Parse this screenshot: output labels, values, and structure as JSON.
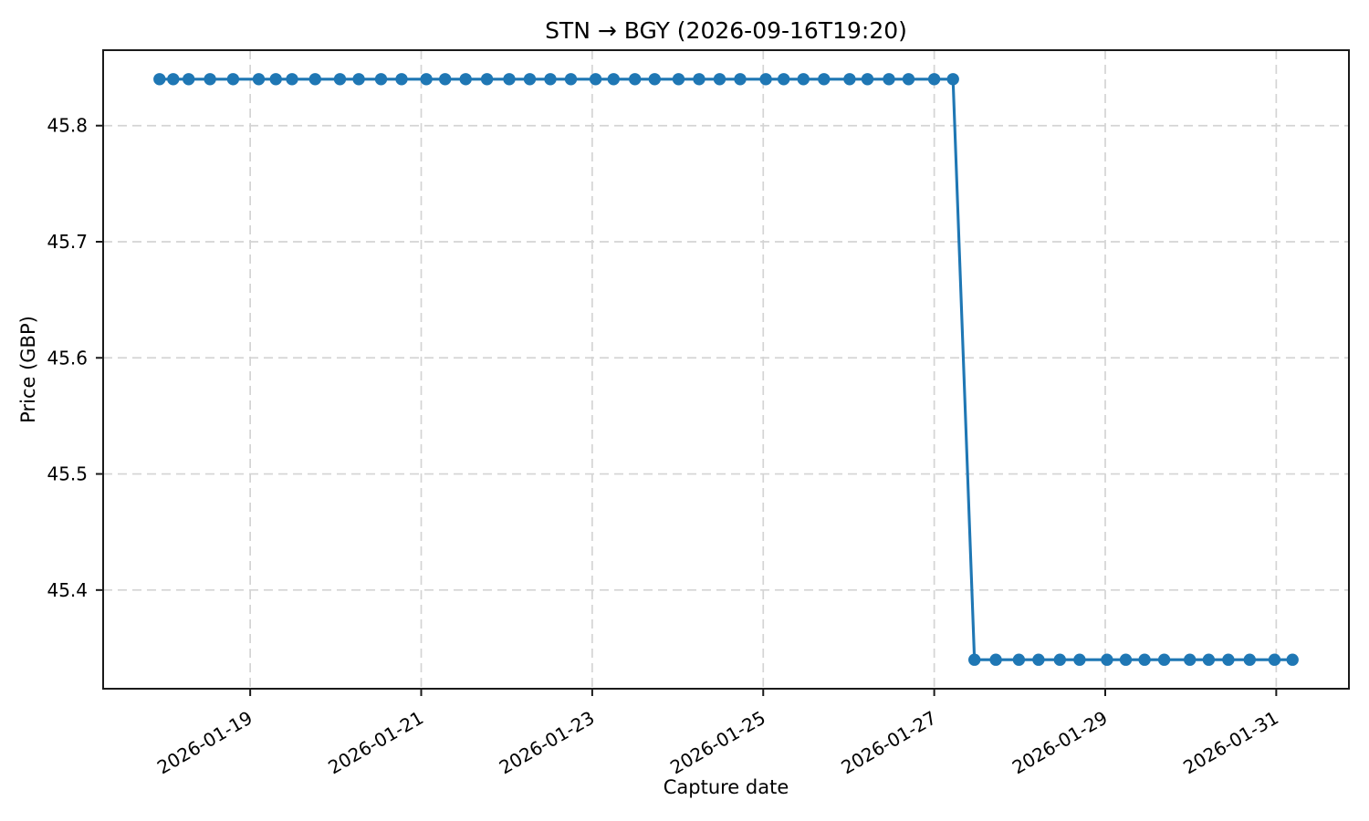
{
  "chart_data": {
    "type": "line",
    "title": "STN → BGY (2026-09-16T19:20)",
    "xlabel": "Capture date",
    "ylabel": "Price (GBP)",
    "x_unit": "fractional day of month, January 2026",
    "xlim": [
      17.28,
      31.85
    ],
    "ylim": [
      45.315,
      45.865
    ],
    "grid": true,
    "grid_style": "dashed",
    "grid_color": "#d4d4d4",
    "axis_color": "#1a1a1a",
    "line_color": "#1f77b4",
    "marker": "circle",
    "legend": "none",
    "x_ticks": [
      {
        "value": 19,
        "label": "2026-01-19"
      },
      {
        "value": 21,
        "label": "2026-01-21"
      },
      {
        "value": 23,
        "label": "2026-01-23"
      },
      {
        "value": 25,
        "label": "2026-01-25"
      },
      {
        "value": 27,
        "label": "2026-01-27"
      },
      {
        "value": 29,
        "label": "2026-01-29"
      },
      {
        "value": 31,
        "label": "2026-01-31"
      }
    ],
    "y_ticks": [
      {
        "value": 45.4,
        "label": "45.4"
      },
      {
        "value": 45.5,
        "label": "45.5"
      },
      {
        "value": 45.6,
        "label": "45.6"
      },
      {
        "value": 45.7,
        "label": "45.7"
      },
      {
        "value": 45.8,
        "label": "45.8"
      }
    ],
    "series": [
      {
        "name": "price",
        "high_value": 45.84,
        "low_value": 45.34,
        "points": [
          [
            17.94,
            45.84
          ],
          [
            18.1,
            45.84
          ],
          [
            18.28,
            45.84
          ],
          [
            18.53,
            45.84
          ],
          [
            18.8,
            45.84
          ],
          [
            19.1,
            45.84
          ],
          [
            19.3,
            45.84
          ],
          [
            19.49,
            45.84
          ],
          [
            19.76,
            45.84
          ],
          [
            20.05,
            45.84
          ],
          [
            20.27,
            45.84
          ],
          [
            20.53,
            45.84
          ],
          [
            20.77,
            45.84
          ],
          [
            21.06,
            45.84
          ],
          [
            21.28,
            45.84
          ],
          [
            21.52,
            45.84
          ],
          [
            21.77,
            45.84
          ],
          [
            22.03,
            45.84
          ],
          [
            22.27,
            45.84
          ],
          [
            22.51,
            45.84
          ],
          [
            22.75,
            45.84
          ],
          [
            23.04,
            45.84
          ],
          [
            23.25,
            45.84
          ],
          [
            23.5,
            45.84
          ],
          [
            23.73,
            45.84
          ],
          [
            24.01,
            45.84
          ],
          [
            24.25,
            45.84
          ],
          [
            24.49,
            45.84
          ],
          [
            24.73,
            45.84
          ],
          [
            25.03,
            45.84
          ],
          [
            25.24,
            45.84
          ],
          [
            25.47,
            45.84
          ],
          [
            25.71,
            45.84
          ],
          [
            26.01,
            45.84
          ],
          [
            26.22,
            45.84
          ],
          [
            26.47,
            45.84
          ],
          [
            26.7,
            45.84
          ],
          [
            27.0,
            45.84
          ],
          [
            27.22,
            45.84
          ],
          [
            27.47,
            45.34
          ],
          [
            27.72,
            45.34
          ],
          [
            27.99,
            45.34
          ],
          [
            28.22,
            45.34
          ],
          [
            28.47,
            45.34
          ],
          [
            28.7,
            45.34
          ],
          [
            29.02,
            45.34
          ],
          [
            29.24,
            45.34
          ],
          [
            29.46,
            45.34
          ],
          [
            29.69,
            45.34
          ],
          [
            29.99,
            45.34
          ],
          [
            30.21,
            45.34
          ],
          [
            30.44,
            45.34
          ],
          [
            30.69,
            45.34
          ],
          [
            30.98,
            45.34
          ],
          [
            31.19,
            45.34
          ]
        ]
      }
    ]
  }
}
